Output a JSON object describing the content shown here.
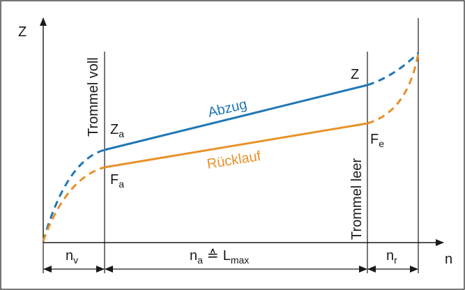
{
  "diagram": {
    "axes": {
      "y_label": "Z",
      "x_label": "n"
    },
    "markers": {
      "left": "Trommel voll",
      "right": "Trommel leer"
    },
    "curves": {
      "upper": {
        "name": "Abzug",
        "color": "#1f77b4",
        "start_label": "Z",
        "start_sub": "a",
        "end_label": "Z"
      },
      "lower": {
        "name": "Rücklauf",
        "color": "#e8912a",
        "start_label": "F",
        "start_sub": "a",
        "end_label": "F",
        "end_sub": "e"
      }
    },
    "segments": {
      "v": {
        "label": "n",
        "sub": "v"
      },
      "a": {
        "label": "n",
        "sub": "a",
        "relation": "≙",
        "relation_label": "L",
        "relation_sub": "max"
      },
      "r": {
        "label": "n",
        "sub": "r"
      }
    }
  }
}
